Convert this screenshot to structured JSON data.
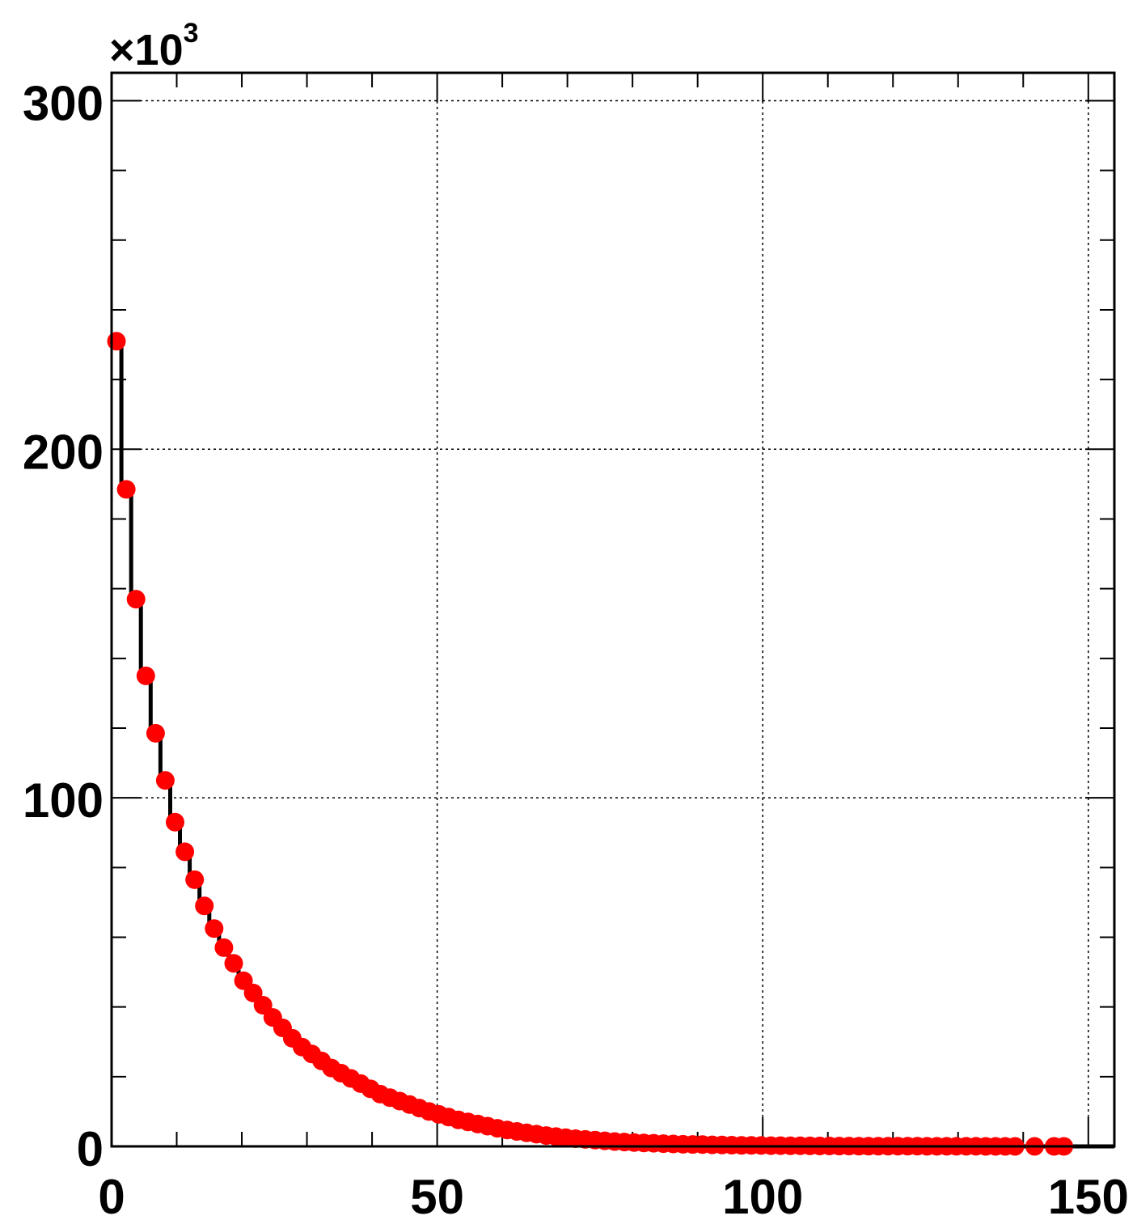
{
  "chart_data": {
    "type": "scatter",
    "title": "",
    "xlabel": "",
    "ylabel": "",
    "xlim": [
      0,
      154
    ],
    "ylim": [
      0,
      308
    ],
    "y_multiplier": {
      "prefix": "×10",
      "exponent": "3"
    },
    "x_ticks": [
      "0",
      "50",
      "100",
      "150"
    ],
    "y_ticks": [
      "0",
      "100",
      "200",
      "300"
    ],
    "grid": true,
    "legend": "none",
    "colors": {
      "marker": "#ff0000",
      "line": "#000000",
      "grid": "#000000",
      "frame": "#000000"
    },
    "series": [
      {
        "x": [
          0.75,
          2.25,
          3.75,
          5.25,
          6.75,
          8.25,
          9.75,
          11.25,
          12.75,
          14.25,
          15.75,
          17.25,
          18.75,
          20.25,
          21.75,
          23.25,
          24.75,
          26.25,
          27.75,
          29.25,
          30.75,
          32.25,
          33.75,
          35.25,
          36.75,
          38.25,
          39.75,
          41.25,
          42.75,
          44.25,
          45.75,
          47.25,
          48.75,
          50.25,
          51.75,
          53.25,
          54.75,
          56.25,
          57.75,
          59.25,
          60.75,
          62.25,
          63.75,
          65.25,
          66.75,
          68.25,
          69.75,
          71.25,
          72.75,
          74.25,
          75.75,
          77.25,
          78.75,
          80.25,
          81.75,
          83.25,
          84.75,
          86.25,
          87.75,
          89.25,
          90.75,
          92.25,
          93.75,
          95.25,
          96.75,
          98.25,
          99.75,
          101.25,
          102.75,
          104.25,
          105.75,
          107.25,
          108.75,
          110.25,
          111.75,
          113.25,
          114.75,
          116.25,
          117.75,
          119.25,
          120.75,
          122.25,
          123.75,
          125.25,
          126.75,
          128.25,
          129.75,
          131.25,
          132.75,
          134.25,
          135.75,
          137.25,
          138.75,
          141.75,
          144.75,
          146.25
        ],
        "y": [
          231.0,
          188.5,
          157.0,
          135.0,
          118.5,
          105.0,
          93.0,
          84.5,
          76.5,
          69.0,
          62.5,
          57.0,
          52.5,
          47.5,
          44.0,
          40.5,
          37.0,
          34.0,
          31.0,
          28.5,
          26.5,
          24.5,
          22.5,
          21.0,
          19.5,
          18.0,
          16.5,
          15.0,
          14.0,
          13.0,
          12.0,
          11.0,
          10.0,
          9.2,
          8.4,
          7.6,
          7.0,
          6.4,
          5.8,
          5.2,
          4.7,
          4.3,
          3.9,
          3.5,
          3.1,
          2.8,
          2.5,
          2.2,
          2.0,
          1.8,
          1.6,
          1.4,
          1.25,
          1.1,
          1.0,
          0.9,
          0.8,
          0.7,
          0.6,
          0.55,
          0.5,
          0.45,
          0.4,
          0.35,
          0.3,
          0.28,
          0.25,
          0.22,
          0.2,
          0.18,
          0.16,
          0.14,
          0.12,
          0.11,
          0.1,
          0.09,
          0.08,
          0.07,
          0.06,
          0.05,
          0.045,
          0.04,
          0.035,
          0.03,
          0.025,
          0.02,
          0.018,
          0.015,
          0.012,
          0.01,
          0.008,
          0.006,
          0.005,
          0.003,
          0.002,
          0.001
        ]
      }
    ]
  }
}
